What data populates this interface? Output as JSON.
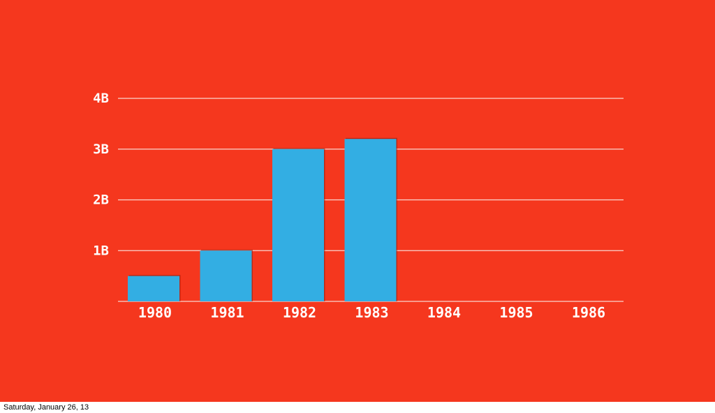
{
  "colors": {
    "background": "#F5371E",
    "bar": "#33AEE3",
    "bar_shadow": "#8A1F10",
    "gridline": "#F9D6CF",
    "text": "#FFFFFF"
  },
  "chart_data": {
    "type": "bar",
    "categories": [
      "1980",
      "1981",
      "1982",
      "1983",
      "1984",
      "1985",
      "1986"
    ],
    "values": [
      0.5,
      1.0,
      3.0,
      3.2,
      null,
      null,
      null
    ],
    "ylim": [
      0,
      4
    ],
    "yticks": [
      {
        "value": 1,
        "label": "1B"
      },
      {
        "value": 2,
        "label": "2B"
      },
      {
        "value": 3,
        "label": "3B"
      },
      {
        "value": 4,
        "label": "4B"
      }
    ],
    "title": "",
    "xlabel": "",
    "ylabel": "",
    "grid": true
  },
  "footer": {
    "date": "Saturday, January 26, 13"
  }
}
